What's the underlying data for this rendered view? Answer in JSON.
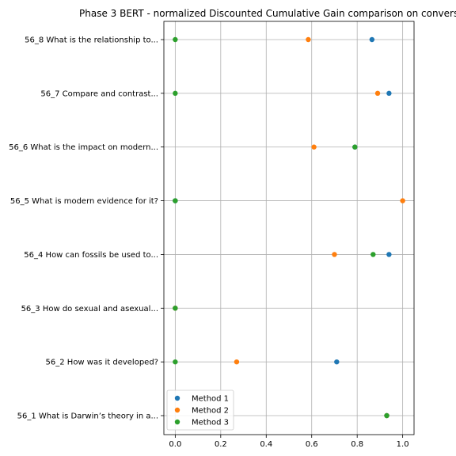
{
  "chart_data": {
    "type": "scatter",
    "title": "Phase 3 BERT - normalized Discounted Cumulative Gain comparison on convers",
    "xlabel": "",
    "ylabel": "",
    "xlim": [
      -0.05,
      1.05
    ],
    "xticks": [
      0.0,
      0.2,
      0.4,
      0.6,
      0.8,
      1.0
    ],
    "xtick_labels": [
      "0.0",
      "0.2",
      "0.4",
      "0.6",
      "0.8",
      "1.0"
    ],
    "grid": true,
    "legend_position": "lower-left",
    "categories": [
      "56_1 What is Darwin’s theory in a...",
      "56_2 How was it developed?",
      "56_3 How do sexual and asexual...",
      "56_4 How can fossils be used to...",
      "56_5 What is modern evidence for it?",
      "56_6 What is the impact on modern...",
      "56_7 Compare and contrast...",
      "56_8 What is the relationship to..."
    ],
    "series": [
      {
        "name": "Method 1",
        "color": "#1f77b4",
        "values": [
          0.93,
          0.71,
          0.0,
          0.94,
          0.0,
          0.79,
          0.94,
          0.865
        ]
      },
      {
        "name": "Method 2",
        "color": "#ff7f0e",
        "values": [
          0.93,
          0.27,
          0.0,
          0.7,
          1.0,
          0.61,
          0.89,
          0.585
        ]
      },
      {
        "name": "Method 3",
        "color": "#2ca02c",
        "values": [
          0.93,
          0.0,
          0.0,
          0.87,
          0.0,
          0.79,
          0.0,
          0.0
        ]
      }
    ]
  }
}
